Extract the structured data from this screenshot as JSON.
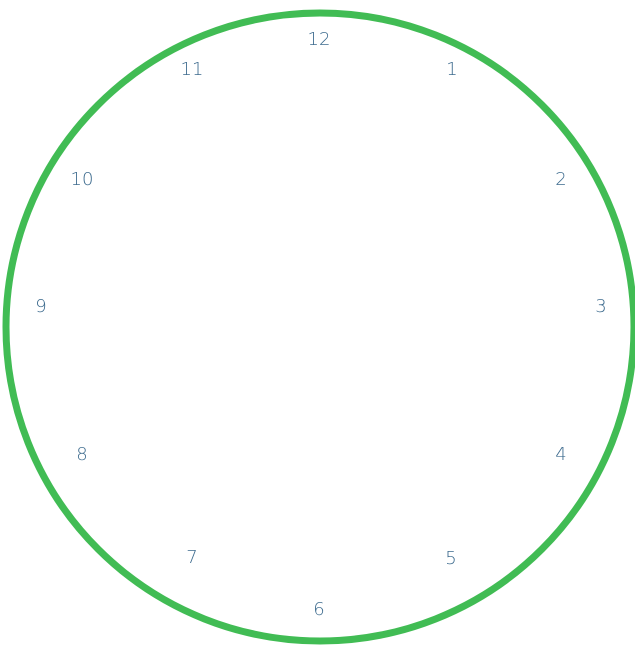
{
  "clock": {
    "numbers": [
      "12",
      "1",
      "2",
      "3",
      "4",
      "5",
      "6",
      "7",
      "8",
      "9",
      "10",
      "11"
    ],
    "colors": {
      "ring": "#41bc54",
      "numbers": "#3d6b8e",
      "background": "#ffffff"
    }
  }
}
